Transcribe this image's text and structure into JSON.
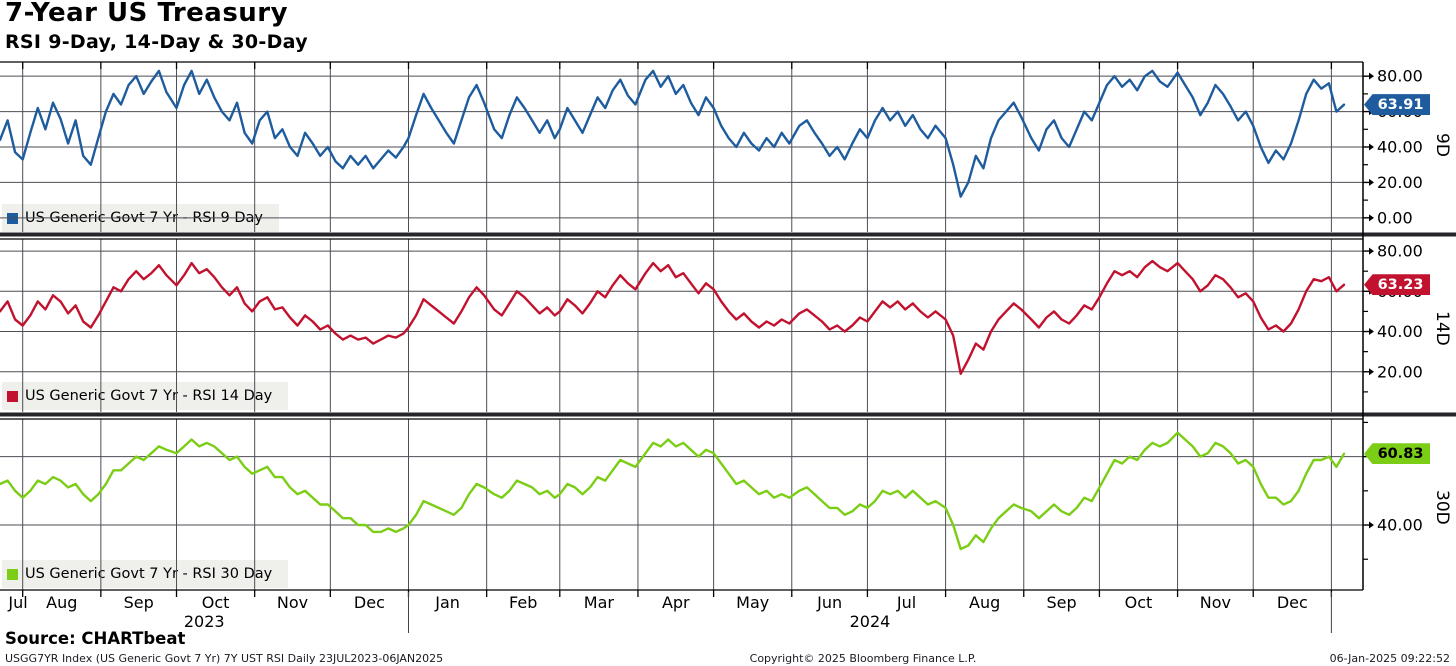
{
  "header": {
    "title": "7-Year US Treasury",
    "subtitle": "RSI 9-Day, 14-Day & 30-Day"
  },
  "footer": {
    "source": "Source: CHARTbeat",
    "description": "USGG7YR Index (US Generic Govt 7 Yr) 7Y UST RSI  Daily 23JUL2023-06JAN2025",
    "copyright": "Copyright© 2025 Bloomberg Finance L.P.",
    "timestamp": "06-Jan-2025 09:22:52"
  },
  "colors": {
    "rsi9": "#1e5c9e",
    "rsi14": "#c1122f",
    "rsi30": "#7bcd15",
    "grid": "#4c4e54",
    "separator": "#26262a",
    "legend_bg": "#efefec"
  },
  "chart_data": {
    "type": "line",
    "x_unit": "trading days since 23JUL2023",
    "x_range_days": [
      0,
      533
    ],
    "months": [
      "Jul",
      "Aug",
      "Sep",
      "Oct",
      "Nov",
      "Dec",
      "Jan",
      "Feb",
      "Mar",
      "Apr",
      "May",
      "Jun",
      "Jul",
      "Aug",
      "Sep",
      "Oct",
      "Nov",
      "Dec"
    ],
    "month_boundaries_days": [
      9,
      40,
      70,
      101,
      131,
      162,
      193,
      222,
      253,
      283,
      314,
      344,
      375,
      406,
      436,
      467,
      497,
      528
    ],
    "years": [
      {
        "label": "2023",
        "center_day": 81
      },
      {
        "label": "2024",
        "center_day": 345
      }
    ],
    "panels": [
      {
        "id": "9D",
        "legend": "US Generic Govt 7 Yr - RSI 9 Day",
        "badge": "63.91",
        "badge_value": 63.91,
        "color": "#1e5c9e",
        "badge_text_color": "#ffffff",
        "ylim": [
          -8,
          88
        ],
        "yticks_major": [
          0,
          20,
          40,
          60,
          80
        ],
        "yticks_minor": [
          10,
          30,
          50,
          70
        ]
      },
      {
        "id": "14D",
        "legend": "US Generic Govt 7 Yr - RSI 14 Day",
        "badge": "63.23",
        "badge_value": 63.23,
        "color": "#c1122f",
        "badge_text_color": "#ffffff",
        "ylim": [
          0,
          86
        ],
        "yticks_major": [
          20,
          40,
          60,
          80
        ],
        "yticks_minor": [
          10,
          30,
          50,
          70
        ]
      },
      {
        "id": "30D",
        "legend": "US Generic Govt 7 Yr - RSI 30 Day",
        "badge": "60.83",
        "badge_value": 60.83,
        "color": "#7bcd15",
        "badge_text_color": "#000000",
        "ylim": [
          21,
          71
        ],
        "yticks_major": [
          40,
          60
        ],
        "yticks_minor": [
          30,
          50,
          70
        ]
      }
    ],
    "samples_format": [
      "day",
      "rsi9",
      "rsi14",
      "rsi30"
    ],
    "samples": [
      [
        0,
        44,
        50,
        52
      ],
      [
        3,
        55,
        55,
        53
      ],
      [
        6,
        37,
        46,
        50
      ],
      [
        9,
        33,
        43,
        48
      ],
      [
        12,
        48,
        48,
        50
      ],
      [
        15,
        62,
        55,
        53
      ],
      [
        18,
        50,
        51,
        52
      ],
      [
        21,
        65,
        58,
        54
      ],
      [
        24,
        56,
        55,
        53
      ],
      [
        27,
        42,
        49,
        51
      ],
      [
        30,
        55,
        53,
        52
      ],
      [
        33,
        35,
        45,
        49
      ],
      [
        36,
        30,
        42,
        47
      ],
      [
        39,
        45,
        48,
        49
      ],
      [
        42,
        60,
        55,
        52
      ],
      [
        45,
        70,
        62,
        56
      ],
      [
        48,
        64,
        60,
        56
      ],
      [
        51,
        75,
        66,
        58
      ],
      [
        54,
        80,
        70,
        60
      ],
      [
        57,
        70,
        66,
        59
      ],
      [
        60,
        77,
        69,
        61
      ],
      [
        63,
        83,
        73,
        63
      ],
      [
        66,
        71,
        68,
        62
      ],
      [
        70,
        62,
        63,
        61
      ],
      [
        73,
        75,
        68,
        63
      ],
      [
        76,
        83,
        74,
        65
      ],
      [
        79,
        70,
        69,
        63
      ],
      [
        82,
        78,
        71,
        64
      ],
      [
        85,
        68,
        67,
        63
      ],
      [
        88,
        60,
        62,
        61
      ],
      [
        91,
        55,
        58,
        59
      ],
      [
        94,
        65,
        62,
        60
      ],
      [
        97,
        48,
        54,
        57
      ],
      [
        100,
        42,
        50,
        55
      ],
      [
        103,
        55,
        55,
        56
      ],
      [
        106,
        60,
        57,
        57
      ],
      [
        109,
        45,
        51,
        54
      ],
      [
        112,
        50,
        52,
        54
      ],
      [
        115,
        40,
        47,
        51
      ],
      [
        118,
        35,
        43,
        49
      ],
      [
        121,
        48,
        48,
        50
      ],
      [
        124,
        42,
        45,
        48
      ],
      [
        127,
        35,
        41,
        46
      ],
      [
        130,
        40,
        43,
        46
      ],
      [
        133,
        32,
        39,
        44
      ],
      [
        136,
        28,
        36,
        42
      ],
      [
        139,
        35,
        38,
        42
      ],
      [
        142,
        30,
        36,
        40
      ],
      [
        145,
        35,
        37,
        40
      ],
      [
        148,
        28,
        34,
        38
      ],
      [
        151,
        33,
        36,
        38
      ],
      [
        154,
        38,
        38,
        39
      ],
      [
        157,
        34,
        37,
        38
      ],
      [
        160,
        40,
        39,
        39
      ],
      [
        162,
        45,
        42,
        40
      ],
      [
        165,
        58,
        48,
        43
      ],
      [
        168,
        70,
        56,
        47
      ],
      [
        171,
        62,
        53,
        46
      ],
      [
        174,
        55,
        50,
        45
      ],
      [
        177,
        48,
        47,
        44
      ],
      [
        180,
        42,
        44,
        43
      ],
      [
        183,
        55,
        50,
        45
      ],
      [
        186,
        68,
        57,
        49
      ],
      [
        189,
        75,
        62,
        52
      ],
      [
        192,
        65,
        58,
        51
      ],
      [
        196,
        50,
        51,
        49
      ],
      [
        199,
        45,
        48,
        48
      ],
      [
        202,
        58,
        54,
        50
      ],
      [
        205,
        68,
        60,
        53
      ],
      [
        208,
        62,
        57,
        52
      ],
      [
        211,
        55,
        53,
        51
      ],
      [
        214,
        48,
        49,
        49
      ],
      [
        217,
        55,
        52,
        50
      ],
      [
        220,
        45,
        48,
        48
      ],
      [
        222,
        50,
        50,
        49
      ],
      [
        225,
        62,
        56,
        52
      ],
      [
        228,
        55,
        53,
        51
      ],
      [
        231,
        48,
        49,
        49
      ],
      [
        234,
        58,
        54,
        51
      ],
      [
        237,
        68,
        60,
        54
      ],
      [
        240,
        62,
        57,
        53
      ],
      [
        243,
        72,
        63,
        56
      ],
      [
        246,
        78,
        68,
        59
      ],
      [
        249,
        69,
        64,
        58
      ],
      [
        252,
        64,
        61,
        57
      ],
      [
        256,
        78,
        69,
        61
      ],
      [
        259,
        83,
        74,
        64
      ],
      [
        262,
        74,
        70,
        63
      ],
      [
        265,
        80,
        73,
        65
      ],
      [
        268,
        70,
        67,
        63
      ],
      [
        271,
        75,
        69,
        64
      ],
      [
        274,
        65,
        64,
        62
      ],
      [
        277,
        58,
        59,
        60
      ],
      [
        280,
        68,
        64,
        62
      ],
      [
        283,
        62,
        61,
        61
      ],
      [
        286,
        52,
        55,
        58
      ],
      [
        289,
        45,
        50,
        55
      ],
      [
        292,
        40,
        46,
        52
      ],
      [
        295,
        48,
        49,
        53
      ],
      [
        298,
        42,
        45,
        51
      ],
      [
        301,
        38,
        42,
        49
      ],
      [
        304,
        45,
        45,
        50
      ],
      [
        307,
        40,
        43,
        48
      ],
      [
        310,
        48,
        46,
        49
      ],
      [
        313,
        42,
        44,
        48
      ],
      [
        317,
        52,
        49,
        50
      ],
      [
        320,
        55,
        51,
        51
      ],
      [
        323,
        48,
        48,
        49
      ],
      [
        326,
        42,
        45,
        47
      ],
      [
        329,
        35,
        41,
        45
      ],
      [
        332,
        40,
        43,
        45
      ],
      [
        335,
        33,
        40,
        43
      ],
      [
        338,
        42,
        43,
        44
      ],
      [
        341,
        50,
        47,
        46
      ],
      [
        344,
        45,
        45,
        45
      ],
      [
        347,
        55,
        50,
        47
      ],
      [
        350,
        62,
        55,
        50
      ],
      [
        353,
        55,
        52,
        49
      ],
      [
        356,
        60,
        55,
        50
      ],
      [
        359,
        52,
        51,
        48
      ],
      [
        362,
        58,
        54,
        50
      ],
      [
        365,
        50,
        50,
        48
      ],
      [
        368,
        45,
        47,
        46
      ],
      [
        371,
        52,
        50,
        47
      ],
      [
        375,
        45,
        46,
        45
      ],
      [
        378,
        30,
        38,
        40
      ],
      [
        381,
        12,
        19,
        33
      ],
      [
        384,
        20,
        26,
        34
      ],
      [
        387,
        35,
        34,
        37
      ],
      [
        390,
        28,
        31,
        35
      ],
      [
        393,
        45,
        40,
        39
      ],
      [
        396,
        55,
        46,
        42
      ],
      [
        399,
        60,
        50,
        44
      ],
      [
        402,
        65,
        54,
        46
      ],
      [
        405,
        57,
        51,
        45
      ],
      [
        409,
        45,
        46,
        44
      ],
      [
        412,
        38,
        42,
        42
      ],
      [
        415,
        50,
        47,
        44
      ],
      [
        418,
        55,
        50,
        46
      ],
      [
        421,
        45,
        46,
        44
      ],
      [
        424,
        40,
        44,
        43
      ],
      [
        427,
        50,
        48,
        45
      ],
      [
        430,
        60,
        53,
        48
      ],
      [
        433,
        55,
        51,
        47
      ],
      [
        436,
        65,
        57,
        51
      ],
      [
        439,
        75,
        64,
        55
      ],
      [
        442,
        80,
        70,
        59
      ],
      [
        445,
        74,
        68,
        58
      ],
      [
        448,
        78,
        70,
        60
      ],
      [
        451,
        72,
        67,
        59
      ],
      [
        454,
        80,
        72,
        62
      ],
      [
        457,
        83,
        75,
        64
      ],
      [
        460,
        77,
        72,
        63
      ],
      [
        463,
        74,
        70,
        64
      ],
      [
        467,
        82,
        74,
        67
      ],
      [
        470,
        75,
        70,
        65
      ],
      [
        473,
        68,
        66,
        63
      ],
      [
        476,
        58,
        60,
        60
      ],
      [
        479,
        65,
        63,
        61
      ],
      [
        482,
        75,
        68,
        64
      ],
      [
        485,
        70,
        66,
        63
      ],
      [
        488,
        63,
        62,
        61
      ],
      [
        491,
        55,
        57,
        58
      ],
      [
        494,
        60,
        59,
        59
      ],
      [
        497,
        52,
        55,
        57
      ],
      [
        500,
        40,
        47,
        52
      ],
      [
        503,
        31,
        41,
        48
      ],
      [
        506,
        38,
        43,
        48
      ],
      [
        509,
        33,
        40,
        46
      ],
      [
        512,
        42,
        44,
        47
      ],
      [
        515,
        55,
        51,
        50
      ],
      [
        518,
        70,
        60,
        55
      ],
      [
        521,
        78,
        66,
        59
      ],
      [
        524,
        73,
        65,
        59
      ],
      [
        527,
        76,
        67,
        60
      ],
      [
        530,
        60,
        60,
        57
      ],
      [
        533,
        63.91,
        63.23,
        60.83
      ]
    ]
  }
}
